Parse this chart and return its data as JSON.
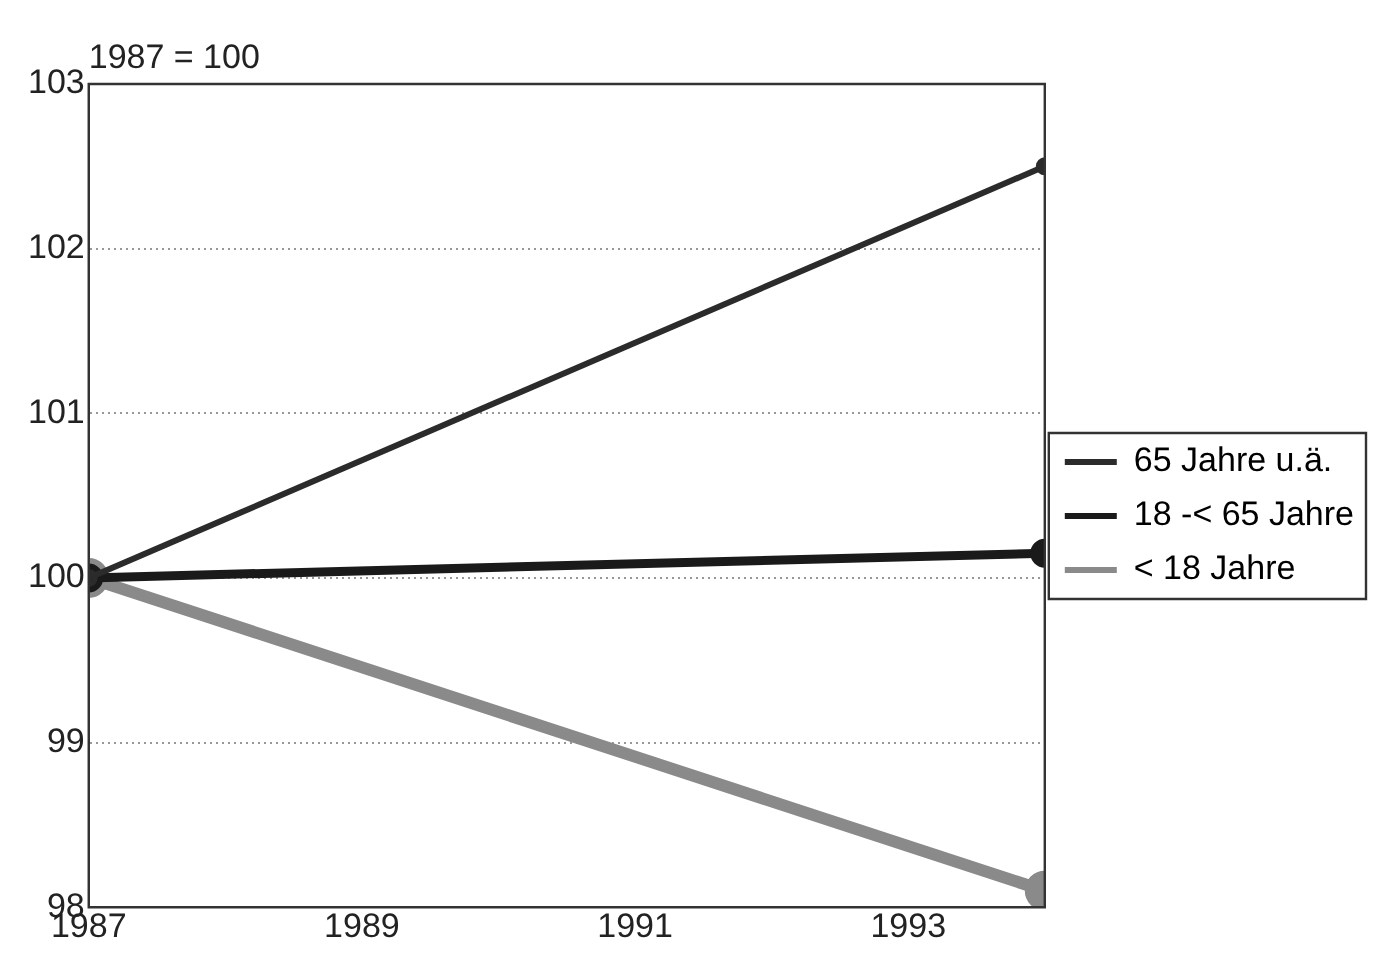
{
  "chart_data": {
    "type": "line",
    "ylabel": "1987 = 100",
    "x": [
      1987,
      1994
    ],
    "series": [
      {
        "name": "65 Jahre u.ä.",
        "color": "#2b2b2b",
        "values": [
          100,
          102.5
        ]
      },
      {
        "name": "18 -< 65 Jahre",
        "color": "#1a1a1a",
        "values": [
          100,
          100.15
        ]
      },
      {
        "name": "< 18 Jahre",
        "color": "#8a8a8a",
        "values": [
          100,
          98.1
        ]
      }
    ],
    "xlim": [
      1987,
      1994
    ],
    "xticks": [
      1987,
      1989,
      1991,
      1993
    ],
    "ylim": [
      98,
      103
    ],
    "yticks": [
      98,
      99,
      100,
      101,
      102,
      103
    ],
    "grid": "y",
    "legend": "right",
    "marker": "circle",
    "line_style": "solid"
  }
}
